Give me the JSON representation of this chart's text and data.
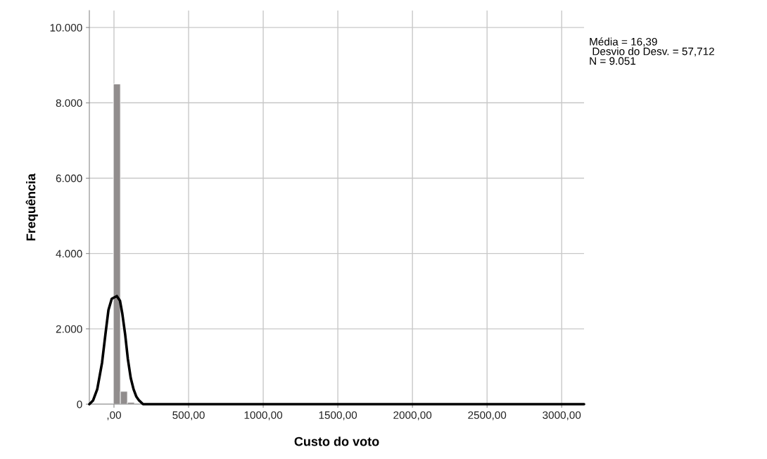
{
  "chart_data": {
    "type": "histogram",
    "xlabel": "Custo do voto",
    "ylabel": "Frequência",
    "bins": [
      -4,
      43,
      90,
      137
    ],
    "values": [
      8500,
      340,
      50
    ],
    "color": "#918d8d",
    "series": [
      {
        "type": "line",
        "color": "#000000",
        "x": [
          -165,
          -140,
          -112,
          -80,
          -56,
          -37,
          -15,
          19,
          40,
          56,
          75,
          93,
          112,
          131,
          150,
          168,
          195,
          224,
          500,
          1000,
          1500,
          2000,
          2500,
          3150
        ],
        "values": [
          0,
          100,
          400,
          1100,
          1900,
          2500,
          2800,
          2870,
          2750,
          2400,
          1850,
          1200,
          700,
          400,
          200,
          100,
          0,
          0,
          0,
          0,
          0,
          0,
          0,
          0
        ]
      }
    ],
    "xlim": [
      -165,
      3150
    ],
    "ylim": [
      0,
      10450
    ],
    "xticks": [
      {
        "value": 0,
        "label": ",00"
      },
      {
        "value": 500,
        "label": "500,00"
      },
      {
        "value": 1000,
        "label": "1000,00"
      },
      {
        "value": 1500,
        "label": "1500,00"
      },
      {
        "value": 2000,
        "label": "2000,00"
      },
      {
        "value": 2500,
        "label": "2500,00"
      },
      {
        "value": 3000,
        "label": "3000,00"
      }
    ],
    "yticks": [
      0,
      {
        "value": 2000,
        "label": "2.000"
      },
      {
        "value": 4000,
        "label": "4.000"
      },
      {
        "value": 6000,
        "label": "6.000"
      },
      {
        "value": 8000,
        "label": "8.000"
      },
      {
        "value": 10000,
        "label": "10.000"
      }
    ],
    "grid": true,
    "annotations": [
      "Média = 16,39\n Desvio do Desv. = 57,712\nN = 9.051"
    ]
  }
}
